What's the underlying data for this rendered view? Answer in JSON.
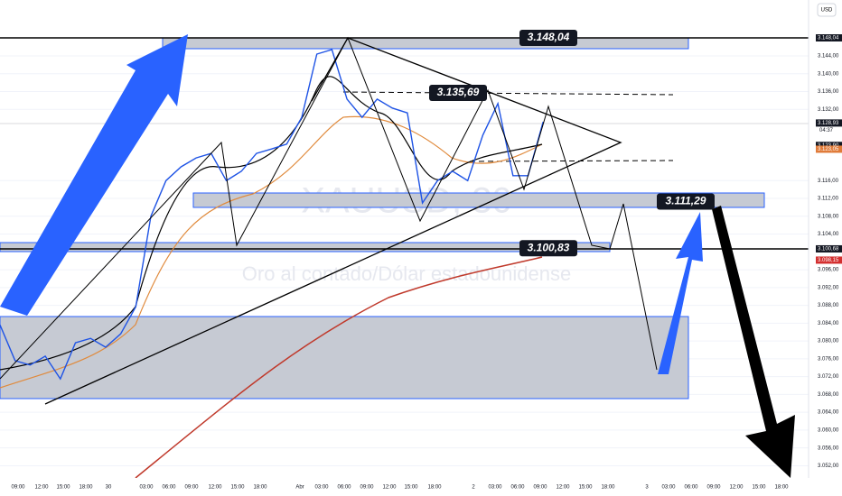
{
  "currency": "USD",
  "watermark": {
    "symbol": "XAUUSD, 30",
    "description": "Oro al contado/Dólar estadounidense"
  },
  "chart_labels": [
    {
      "value": 3148.04,
      "label": "3.148,04"
    },
    {
      "value": 3135.69,
      "label": "3.135,69"
    },
    {
      "value": 3111.29,
      "label": "3.111,29"
    },
    {
      "value": 3100.83,
      "label": "3.100,83"
    }
  ],
  "price_axis": {
    "ticks": [
      {
        "value": 3144,
        "label": "3.144,00"
      },
      {
        "value": 3140,
        "label": "3.140,00"
      },
      {
        "value": 3136,
        "label": "3.136,00"
      },
      {
        "value": 3132,
        "label": "3.132,00"
      },
      {
        "value": 3116,
        "label": "3.116,00"
      },
      {
        "value": 3112,
        "label": "3.112,00"
      },
      {
        "value": 3108,
        "label": "3.108,00"
      },
      {
        "value": 3104,
        "label": "3.104,00"
      },
      {
        "value": 3096,
        "label": "3.096,00"
      },
      {
        "value": 3092,
        "label": "3.092,00"
      },
      {
        "value": 3088,
        "label": "3.088,00"
      },
      {
        "value": 3084,
        "label": "3.084,00"
      },
      {
        "value": 3080,
        "label": "3.080,00"
      },
      {
        "value": 3076,
        "label": "3.076,00"
      },
      {
        "value": 3072,
        "label": "3.072,00"
      },
      {
        "value": 3068,
        "label": "3.068,00"
      },
      {
        "value": 3064,
        "label": "3.064,00"
      },
      {
        "value": 3060,
        "label": "3.060,00"
      },
      {
        "value": 3056,
        "label": "3.056,00"
      },
      {
        "value": 3052,
        "label": "3.052,00"
      }
    ],
    "badges": [
      {
        "value": 3148.04,
        "label": "3.148,04",
        "color": "#131722"
      },
      {
        "value": 3128.93,
        "label": "3.128,93",
        "color": "#131722"
      },
      {
        "value": 3123.9,
        "label": "3.123,90",
        "color": "#131722"
      },
      {
        "value": 3123.05,
        "label": "3.123,05",
        "color": "#e07b39"
      },
      {
        "value": 3100.68,
        "label": "3.100,68",
        "color": "#131722"
      },
      {
        "value": 3098.15,
        "label": "3.098,15",
        "color": "#d32f2f"
      }
    ],
    "countdown": "04:37"
  },
  "time_axis": {
    "labels": [
      "09:00",
      "12:00",
      "15:00",
      "18:00",
      "30",
      "03:00",
      "06:00",
      "09:00",
      "12:00",
      "15:00",
      "18:00",
      "Abr",
      "03:00",
      "06:00",
      "09:00",
      "12:00",
      "15:00",
      "18:00",
      "2",
      "03:00",
      "06:00",
      "09:00",
      "12:00",
      "15:00",
      "18:00",
      "3",
      "03:00",
      "06:00",
      "09:00",
      "12:00",
      "15:00",
      "18:00"
    ]
  },
  "price_line": {
    "values": [
      3083.6,
      3075.6,
      3074.6,
      3076.6,
      3071.5,
      3079.6,
      3080.6,
      3078.6,
      3081.6,
      3087.7,
      3108.0,
      3116.0,
      3119.1,
      3121.1,
      3122.1,
      3116.0,
      3118.1,
      3122.1,
      3123.1,
      3124.2,
      3130.2,
      3144.4,
      3145.4,
      3134.3,
      3130.2,
      3134.3,
      3132.3,
      3131.2,
      3111.0,
      3116.0,
      3118.1,
      3116.0,
      3126.2,
      3133.3,
      3117.1,
      3117.1,
      3129.2
    ]
  }
}
